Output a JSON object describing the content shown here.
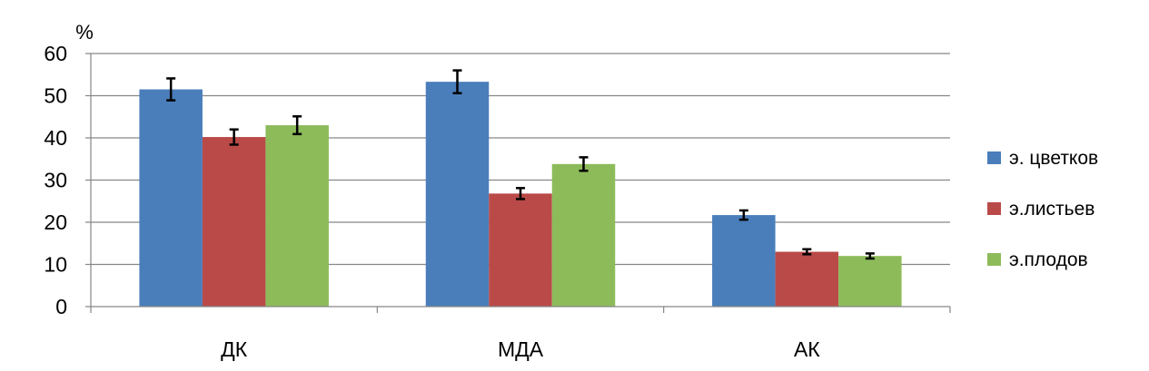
{
  "chart_data": {
    "type": "bar",
    "ylabel": "%",
    "ylim": [
      0,
      60
    ],
    "yticks": [
      0,
      10,
      20,
      30,
      40,
      50,
      60
    ],
    "grid": true,
    "legend_position": "right",
    "categories": [
      "ДК",
      "МДА",
      "АК"
    ],
    "series": [
      {
        "name": "э. цветков",
        "color": "#4a7ebb",
        "values": [
          51.5,
          53.3,
          21.7
        ],
        "errors": [
          2.6,
          2.7,
          1.1
        ]
      },
      {
        "name": "э.листьев",
        "color": "#b94a48",
        "values": [
          40.2,
          26.8,
          13.0
        ],
        "errors": [
          1.8,
          1.3,
          0.6
        ]
      },
      {
        "name": "э.плодов",
        "color": "#8dbb5a",
        "values": [
          43.0,
          33.8,
          12.0
        ],
        "errors": [
          2.1,
          1.6,
          0.6
        ]
      }
    ]
  }
}
